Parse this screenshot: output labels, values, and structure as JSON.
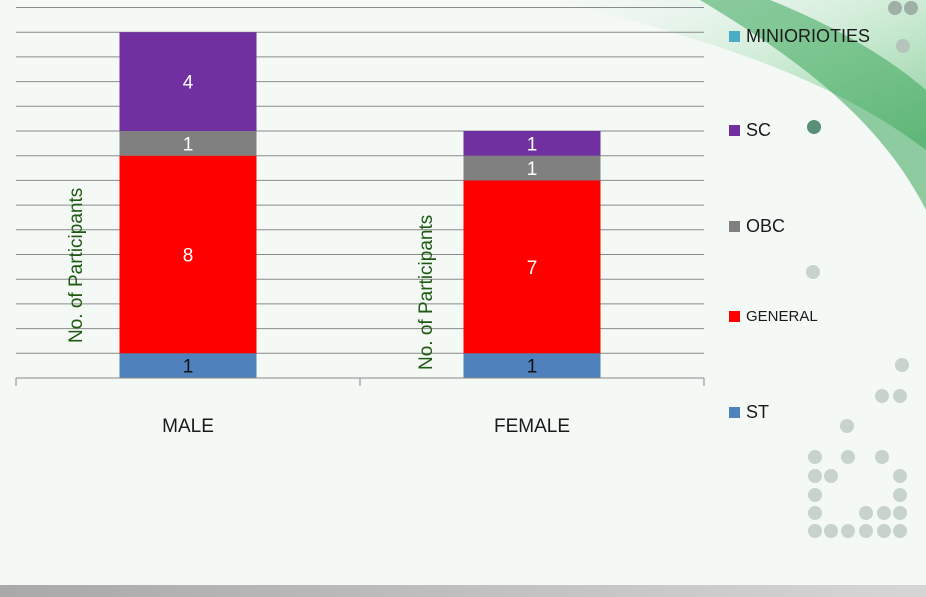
{
  "chart_data": {
    "type": "bar",
    "stacked": true,
    "categories": [
      "MALE",
      "FEMALE"
    ],
    "series": [
      {
        "name": "ST",
        "color": "#4f81bd",
        "values": [
          1,
          1
        ]
      },
      {
        "name": "GENERAL",
        "color": "#ff0000",
        "values": [
          8,
          7
        ]
      },
      {
        "name": "OBC",
        "color": "#808080",
        "values": [
          1,
          1
        ]
      },
      {
        "name": "SC",
        "color": "#7030a0",
        "values": [
          4,
          1
        ]
      },
      {
        "name": "MINIORIOTIES",
        "color": "#4bacc6",
        "values": [
          0,
          0
        ]
      }
    ],
    "ylabel": "No. of Participants",
    "ylim": [
      0,
      15
    ],
    "grid": true,
    "legend": "right"
  }
}
